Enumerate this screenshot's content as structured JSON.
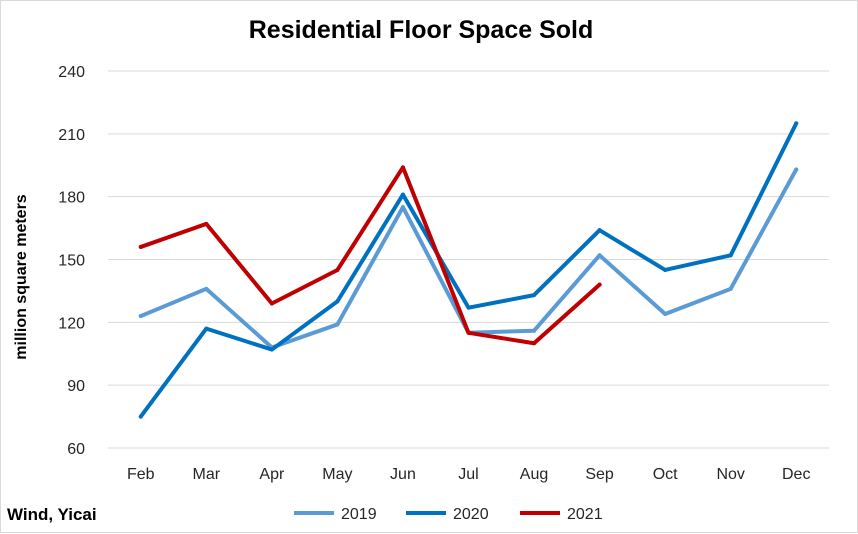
{
  "chart_data": {
    "type": "line",
    "title": "Residential Floor Space Sold",
    "ylabel": "million square meters",
    "xlabel": "",
    "categories": [
      "Feb",
      "Mar",
      "Apr",
      "May",
      "Jun",
      "Jul",
      "Aug",
      "Sep",
      "Oct",
      "Nov",
      "Dec"
    ],
    "ylim": [
      60,
      240
    ],
    "yticks": [
      60,
      90,
      120,
      150,
      180,
      210,
      240
    ],
    "grid": "horizontal",
    "legend_position": "bottom",
    "series": [
      {
        "name": "2019",
        "color": "#5b9bd5",
        "values": [
          123,
          136,
          108,
          119,
          175,
          115,
          116,
          152,
          124,
          136,
          193
        ]
      },
      {
        "name": "2020",
        "color": "#0070c0",
        "values": [
          75,
          117,
          107,
          130,
          181,
          127,
          133,
          164,
          145,
          152,
          215
        ]
      },
      {
        "name": "2021",
        "color": "#c00000",
        "values": [
          156,
          167,
          129,
          145,
          194,
          115,
          110,
          138,
          null,
          null,
          null
        ]
      }
    ],
    "source": "Wind, Yicai"
  }
}
